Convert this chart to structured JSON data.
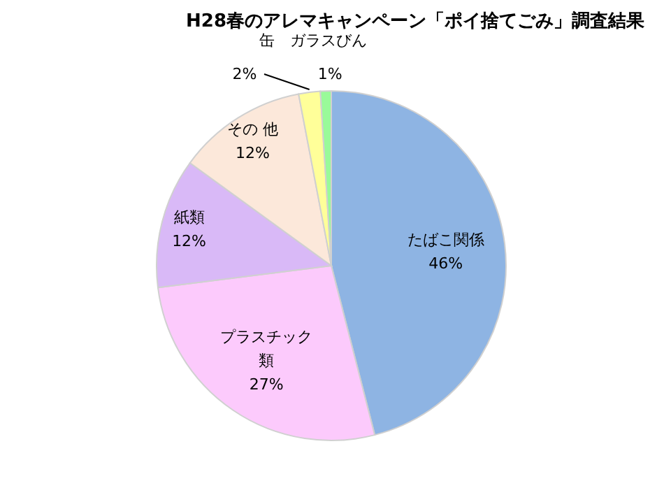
{
  "chart_data": {
    "type": "pie",
    "title": "H28春のアレマキャンペーン「ポイ捨てごみ」調査結果",
    "categories": [
      "たばこ関係",
      "プラスチック類",
      "紙類",
      "その 他",
      "缶",
      "ガラスびん"
    ],
    "values": [
      46,
      27,
      12,
      12,
      2,
      1
    ],
    "colors": [
      "#8eb4e3",
      "#fccafc",
      "#d9b9f7",
      "#fce8da",
      "#ffff99",
      "#99fa99"
    ],
    "value_labels": [
      "46%",
      "27%",
      "12%",
      "12%",
      "2%",
      "1%"
    ]
  }
}
